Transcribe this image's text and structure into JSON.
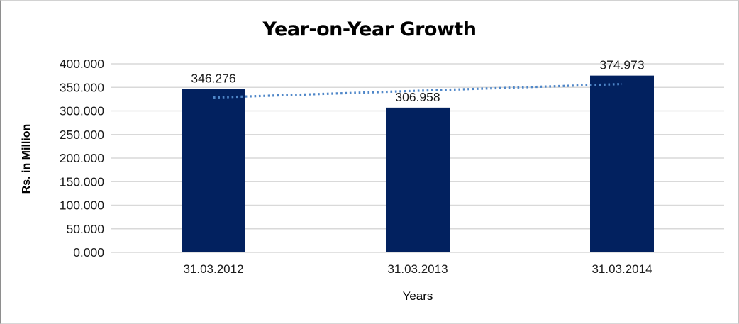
{
  "chart_data": {
    "type": "bar",
    "title": "Year-on-Year Growth",
    "xlabel": "Years",
    "ylabel": "Rs. in Million",
    "categories": [
      "31.03.2012",
      "31.03.2013",
      "31.03.2014"
    ],
    "values": [
      346.276,
      306.958,
      374.973
    ],
    "data_labels": [
      "346.276",
      "306.958",
      "374.973"
    ],
    "ylim": [
      0,
      400
    ],
    "ytick_step": 50,
    "ytick_labels": [
      "0.000",
      "50.000",
      "100.000",
      "150.000",
      "200.000",
      "250.000",
      "300.000",
      "350.000",
      "400.000"
    ],
    "grid": true,
    "legend": "none",
    "bar_color": "#02215F",
    "gridline_color": "#D9D9D9",
    "text_color": "#1a1a1a",
    "trendline": {
      "type": "linear",
      "style": "dotted",
      "color": "#4E86C8"
    }
  }
}
